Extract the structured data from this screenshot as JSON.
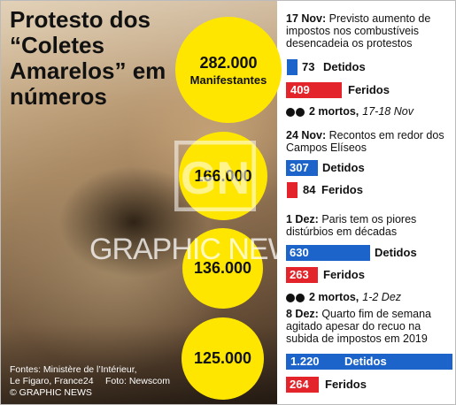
{
  "title": "Protesto dos “Coletes Amarelos” em números",
  "bubbles": [
    {
      "value": "282.000",
      "label": "Manifestantes"
    },
    {
      "value": "166.000"
    },
    {
      "value": "136.000"
    },
    {
      "value": "125.000"
    }
  ],
  "sections": [
    {
      "date": "17 Nov:",
      "text": "Previsto aumento de impostos nos combustíveis desencadeia os protestos",
      "detained": {
        "value": "73",
        "label": "Detidos"
      },
      "injured": {
        "value": "409",
        "label": "Feridos"
      },
      "deaths": {
        "text": "2 mortos,",
        "dates": "17-18 Nov"
      }
    },
    {
      "date": "24 Nov:",
      "text": "Recontos em redor dos Campos Elíseos",
      "detained": {
        "value": "307",
        "label": "Detidos"
      },
      "injured": {
        "value": "84",
        "label": "Feridos"
      }
    },
    {
      "date": "1 Dez:",
      "text": "Paris tem os piores distúrbios em décadas",
      "detained": {
        "value": "630",
        "label": "Detidos"
      },
      "injured": {
        "value": "263",
        "label": "Feridos"
      },
      "deaths": {
        "text": "2 mortos,",
        "dates": "1-2 Dez"
      }
    },
    {
      "date": "8 Dez:",
      "text": "Quarto fim de semana agitado apesar do recuo na subida de impostos em 2019",
      "detained": {
        "value": "1.220",
        "label": "Detidos"
      },
      "injured": {
        "value": "264",
        "label": "Feridos"
      }
    }
  ],
  "sources": [
    "Fontes: Ministère de l’Intérieur,",
    "Le Figaro, France24",
    "© GRAPHIC NEWS"
  ],
  "photo_credit": "Foto: Newscom",
  "watermark": {
    "logo": "GN",
    "text": "GRAPHIC NEWS"
  },
  "colors": {
    "bubble": "#ffe600",
    "detained": "#1c64c9",
    "injured": "#e3242b"
  }
}
